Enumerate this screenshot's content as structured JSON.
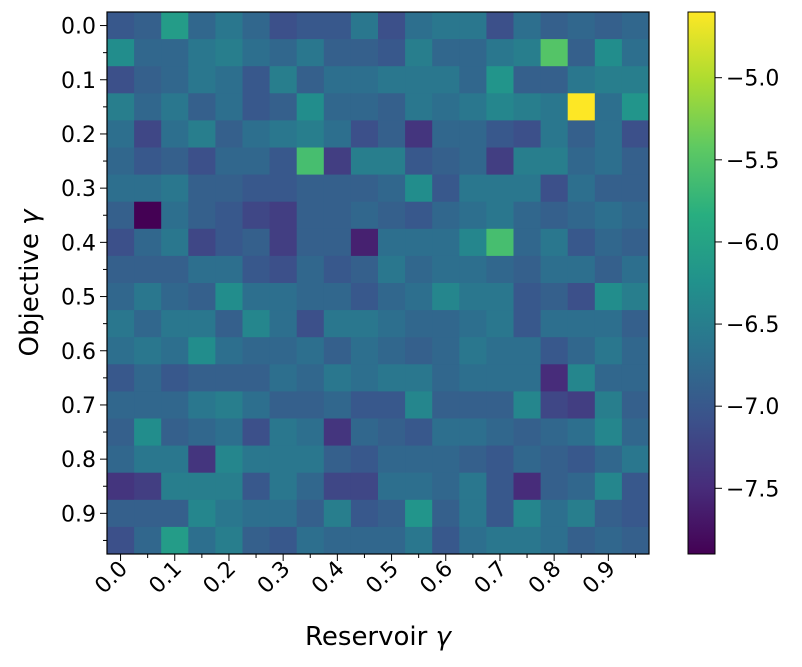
{
  "chart_data": {
    "type": "heatmap",
    "title": "",
    "xlabel": "Reservoir γ",
    "ylabel": "Objective γ",
    "x_tick_labels": [
      "0.0",
      "0.1",
      "0.2",
      "0.3",
      "0.4",
      "0.5",
      "0.6",
      "0.7",
      "0.8",
      "0.9"
    ],
    "y_tick_labels": [
      "0.0",
      "0.1",
      "0.2",
      "0.3",
      "0.4",
      "0.5",
      "0.6",
      "0.7",
      "0.8",
      "0.9"
    ],
    "x_range": [
      0.0,
      0.95
    ],
    "y_range": [
      0.0,
      0.95
    ],
    "cell_step": 0.05,
    "colormap": "viridis",
    "colorbar_range": [
      -7.9,
      -4.6
    ],
    "colorbar_ticks": [
      -5.0,
      -5.5,
      -6.0,
      -6.5,
      -7.0,
      -7.5
    ],
    "colorbar_tick_labels": [
      "−5.0",
      "−5.5",
      "−6.0",
      "−6.5",
      "−7.0",
      "−7.5"
    ],
    "values": [
      [
        -7.0,
        -6.9,
        -6.1,
        -6.8,
        -6.6,
        -6.8,
        -7.1,
        -7.0,
        -7.0,
        -6.6,
        -7.1,
        -6.7,
        -6.6,
        -6.6,
        -7.1,
        -6.7,
        -6.9,
        -6.8,
        -6.9,
        -6.8
      ],
      [
        -6.3,
        -6.8,
        -6.8,
        -6.6,
        -6.5,
        -6.7,
        -6.8,
        -6.6,
        -6.9,
        -6.9,
        -7.0,
        -6.5,
        -6.8,
        -6.8,
        -6.6,
        -6.5,
        -5.5,
        -6.9,
        -6.3,
        -6.7
      ],
      [
        -7.1,
        -6.9,
        -6.8,
        -6.6,
        -6.7,
        -7.0,
        -6.5,
        -6.9,
        -6.7,
        -6.7,
        -6.6,
        -6.6,
        -6.6,
        -6.8,
        -6.2,
        -6.9,
        -6.9,
        -6.6,
        -6.5,
        -6.5
      ],
      [
        -6.5,
        -6.8,
        -6.6,
        -6.9,
        -6.7,
        -7.0,
        -6.9,
        -6.3,
        -6.8,
        -6.8,
        -6.9,
        -6.6,
        -6.7,
        -6.6,
        -6.4,
        -6.5,
        -6.6,
        -4.6,
        -6.7,
        -6.2
      ],
      [
        -6.7,
        -7.2,
        -6.7,
        -6.5,
        -6.9,
        -6.7,
        -6.6,
        -6.5,
        -6.7,
        -7.1,
        -6.9,
        -7.4,
        -6.8,
        -6.8,
        -7.0,
        -7.1,
        -6.6,
        -6.9,
        -6.7,
        -7.1
      ],
      [
        -6.8,
        -7.0,
        -6.9,
        -7.1,
        -6.8,
        -6.8,
        -7.0,
        -5.6,
        -7.3,
        -6.5,
        -6.5,
        -7.0,
        -6.9,
        -6.8,
        -7.3,
        -6.5,
        -6.5,
        -6.8,
        -6.7,
        -6.9
      ],
      [
        -6.7,
        -6.7,
        -6.6,
        -6.9,
        -6.9,
        -7.0,
        -7.0,
        -6.9,
        -6.9,
        -6.9,
        -6.8,
        -6.3,
        -7.0,
        -6.6,
        -6.6,
        -6.6,
        -7.1,
        -6.7,
        -6.9,
        -6.9
      ],
      [
        -6.9,
        -7.9,
        -6.7,
        -6.9,
        -7.0,
        -7.2,
        -7.3,
        -6.9,
        -6.9,
        -6.8,
        -6.9,
        -7.0,
        -6.8,
        -6.7,
        -6.6,
        -6.8,
        -6.9,
        -6.8,
        -6.7,
        -6.8
      ],
      [
        -7.1,
        -6.8,
        -6.6,
        -7.2,
        -7.0,
        -6.9,
        -7.3,
        -6.9,
        -6.9,
        -7.6,
        -6.7,
        -6.7,
        -6.7,
        -6.4,
        -5.6,
        -6.8,
        -6.6,
        -7.0,
        -6.8,
        -6.9
      ],
      [
        -6.9,
        -6.9,
        -6.9,
        -6.7,
        -6.7,
        -7.0,
        -7.1,
        -6.8,
        -7.0,
        -6.9,
        -6.6,
        -6.8,
        -6.7,
        -6.7,
        -6.8,
        -6.9,
        -6.7,
        -6.7,
        -6.9,
        -6.7
      ],
      [
        -6.8,
        -6.6,
        -6.8,
        -6.9,
        -6.3,
        -6.7,
        -6.7,
        -6.8,
        -6.8,
        -7.0,
        -6.8,
        -6.7,
        -6.4,
        -6.6,
        -6.6,
        -7.0,
        -6.9,
        -7.1,
        -6.3,
        -6.5
      ],
      [
        -6.6,
        -6.8,
        -6.6,
        -6.6,
        -6.9,
        -6.4,
        -6.7,
        -7.1,
        -6.6,
        -6.6,
        -6.7,
        -6.8,
        -6.8,
        -6.7,
        -6.6,
        -7.0,
        -6.7,
        -6.7,
        -6.7,
        -6.9
      ],
      [
        -6.7,
        -6.6,
        -6.7,
        -6.3,
        -6.7,
        -6.8,
        -6.8,
        -6.7,
        -6.9,
        -6.7,
        -6.8,
        -6.9,
        -6.8,
        -6.6,
        -6.7,
        -6.7,
        -7.0,
        -6.8,
        -6.6,
        -6.8
      ],
      [
        -7.0,
        -6.8,
        -7.0,
        -6.9,
        -6.9,
        -6.9,
        -6.7,
        -6.8,
        -6.6,
        -6.7,
        -6.6,
        -6.6,
        -6.8,
        -6.7,
        -6.7,
        -6.7,
        -7.5,
        -6.4,
        -6.8,
        -6.8
      ],
      [
        -6.8,
        -6.8,
        -6.8,
        -6.6,
        -6.5,
        -6.7,
        -6.9,
        -6.9,
        -6.8,
        -7.0,
        -7.0,
        -6.4,
        -6.9,
        -6.9,
        -6.9,
        -6.4,
        -7.2,
        -7.3,
        -6.5,
        -6.9
      ],
      [
        -6.9,
        -6.3,
        -6.9,
        -6.8,
        -6.7,
        -7.1,
        -6.6,
        -6.7,
        -7.4,
        -6.8,
        -6.9,
        -7.0,
        -6.7,
        -6.7,
        -6.8,
        -6.9,
        -6.8,
        -6.7,
        -6.4,
        -6.8
      ],
      [
        -6.8,
        -6.6,
        -6.6,
        -7.4,
        -6.4,
        -6.6,
        -6.6,
        -6.6,
        -6.9,
        -7.0,
        -6.8,
        -6.8,
        -6.8,
        -6.9,
        -7.0,
        -6.8,
        -6.9,
        -7.0,
        -6.8,
        -6.6
      ],
      [
        -7.4,
        -7.3,
        -6.5,
        -6.5,
        -6.5,
        -7.0,
        -6.6,
        -6.8,
        -7.2,
        -7.2,
        -6.7,
        -6.7,
        -6.8,
        -6.6,
        -7.0,
        -7.5,
        -6.9,
        -6.8,
        -6.4,
        -7.0
      ],
      [
        -6.9,
        -6.9,
        -6.9,
        -6.4,
        -6.6,
        -6.7,
        -6.7,
        -6.9,
        -6.5,
        -7.0,
        -6.9,
        -6.2,
        -6.9,
        -6.6,
        -7.0,
        -6.4,
        -6.7,
        -6.5,
        -6.9,
        -7.0
      ],
      [
        -7.1,
        -6.8,
        -6.1,
        -6.7,
        -6.5,
        -6.9,
        -7.0,
        -6.7,
        -6.8,
        -6.8,
        -6.8,
        -6.6,
        -7.0,
        -6.7,
        -6.6,
        -6.6,
        -6.7,
        -6.9,
        -6.8,
        -6.9
      ]
    ]
  }
}
